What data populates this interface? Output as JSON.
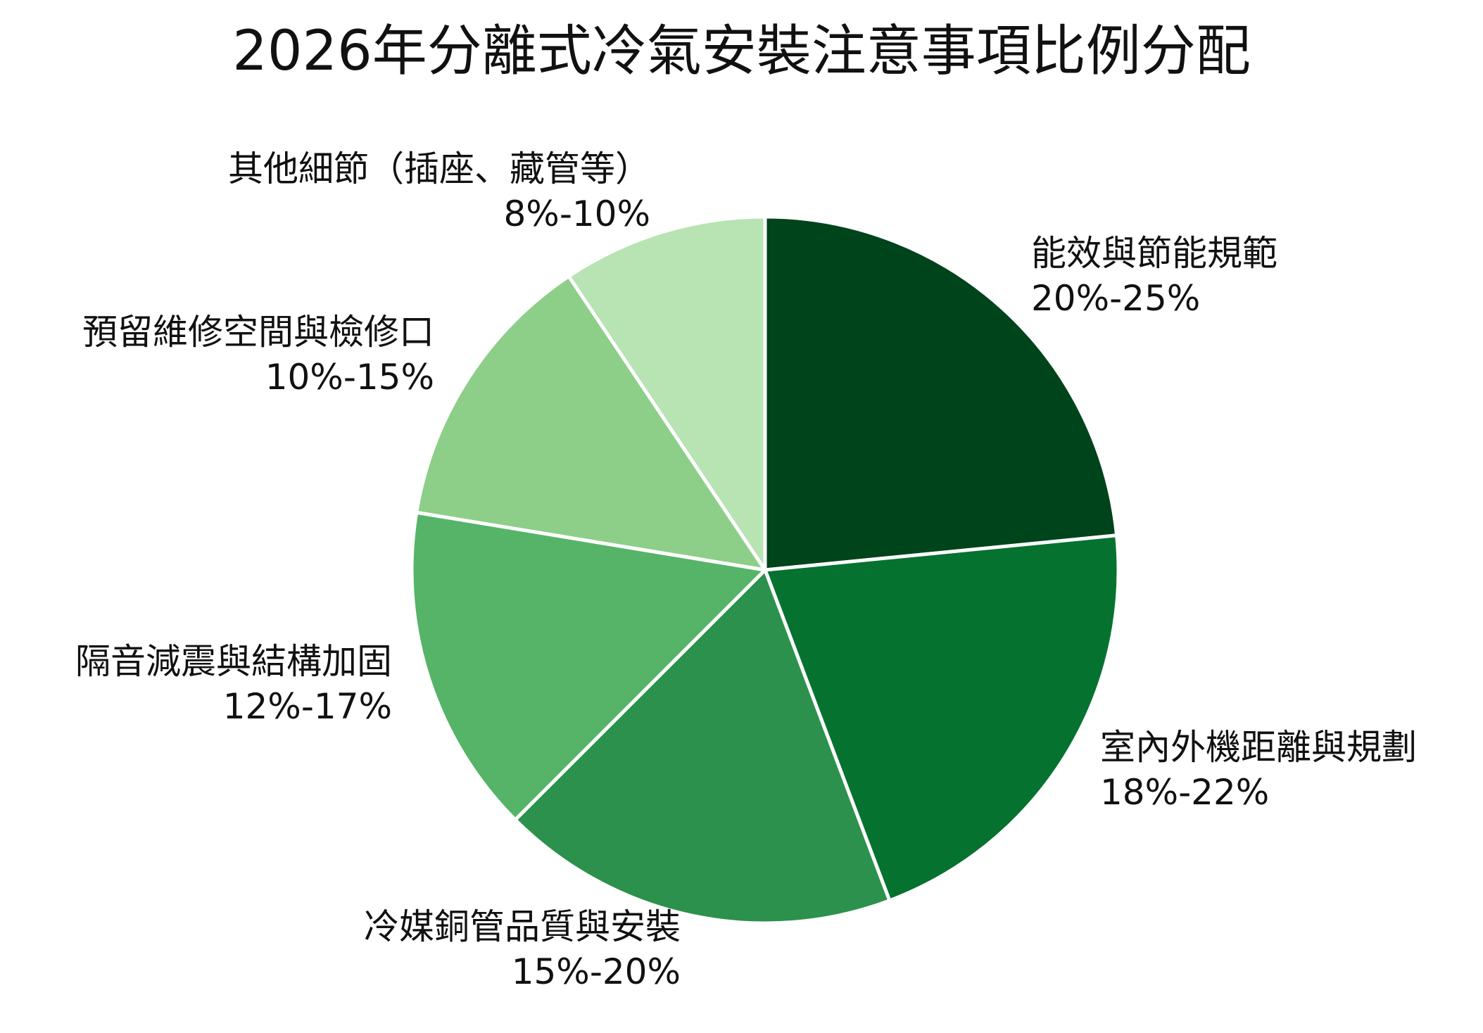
{
  "chart_data": {
    "type": "pie",
    "title": "2026年分離式冷氣安裝注意事項比例分配",
    "slices": [
      {
        "label": "能效與節能規範",
        "range": "20%-25%",
        "value": 22.5,
        "color": "#00441b"
      },
      {
        "label": "室內外機距離與規劃",
        "range": "18%-22%",
        "value": 20,
        "color": "#06722f"
      },
      {
        "label": "冷媒銅管品質與安裝",
        "range": "15%-20%",
        "value": 17.5,
        "color": "#2c914c"
      },
      {
        "label": "隔音減震與結構加固",
        "range": "12%-17%",
        "value": 14.5,
        "color": "#56b468"
      },
      {
        "label": "預留維修空間與檢修口",
        "range": "10%-15%",
        "value": 12.5,
        "color": "#8dcf89"
      },
      {
        "label": "其他細節（插座、藏管等）",
        "range": "8%-10%",
        "value": 9,
        "color": "#b8e3b3"
      }
    ],
    "start_angle_deg": 0,
    "direction": "clockwise",
    "legend": "none"
  }
}
